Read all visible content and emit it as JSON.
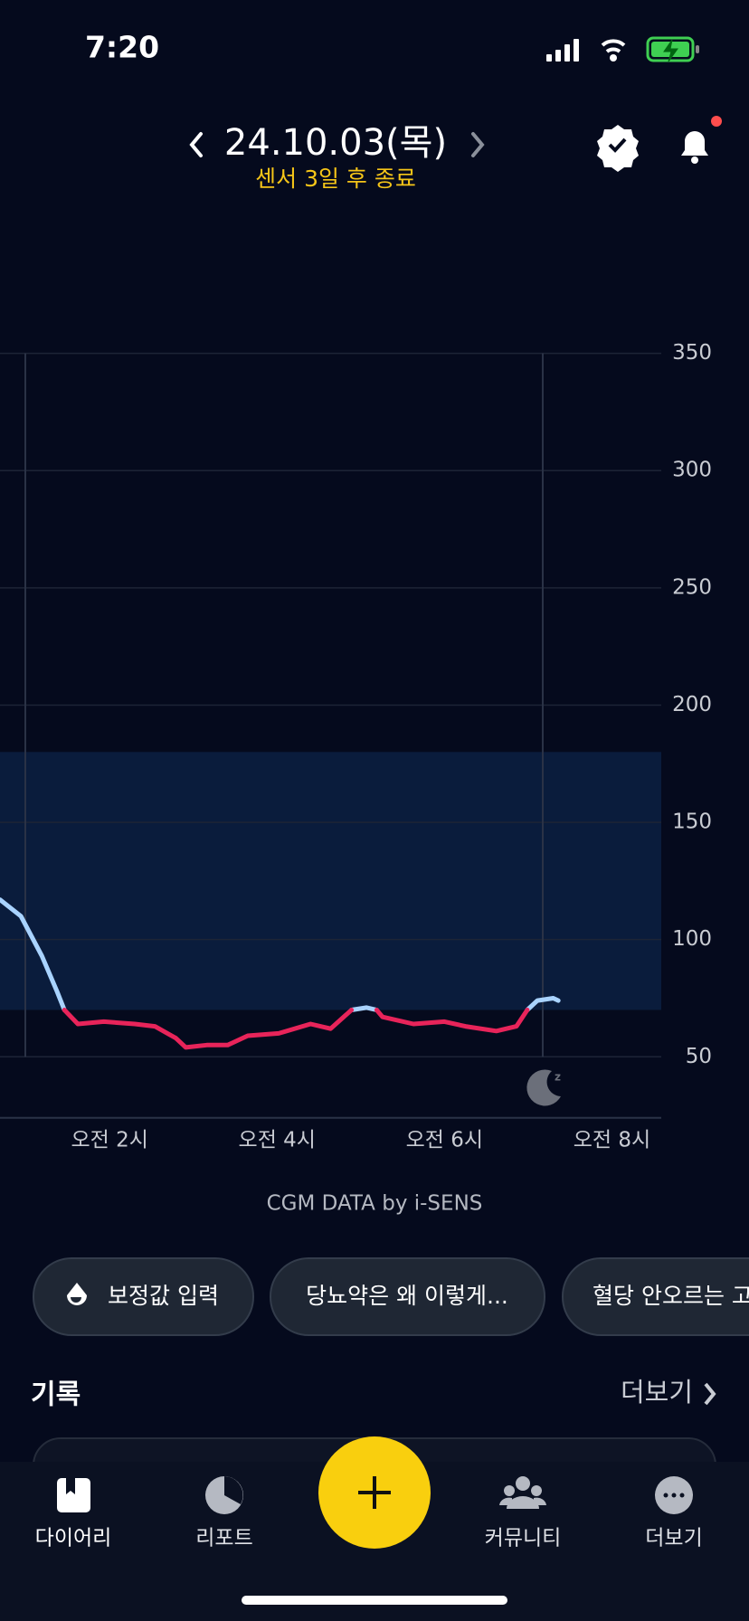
{
  "status_bar": {
    "time": "7:20"
  },
  "header": {
    "date": "24.10.03(목)",
    "subtitle": "센서 3일 후 종료"
  },
  "chart_data": {
    "type": "line",
    "x": [
      0.69,
      0.94,
      1.19,
      1.37,
      1.46,
      1.62,
      1.93,
      2.3,
      2.54,
      2.79,
      2.91,
      3.16,
      3.41,
      3.65,
      4.02,
      4.4,
      4.64,
      4.89,
      5.07,
      5.19,
      5.26,
      5.63,
      6.0,
      6.25,
      6.62,
      6.86,
      6.99,
      7.11,
      7.3,
      7.36
    ],
    "xlim": [
      0.69,
      8.59
    ],
    "xticks": [
      {
        "value": 2,
        "label": "오전 2시"
      },
      {
        "value": 4,
        "label": "오전 4시"
      },
      {
        "value": 6,
        "label": "오전 6시"
      },
      {
        "value": 8,
        "label": "오전 8시"
      }
    ],
    "ylim": [
      24,
      350
    ],
    "yticks": [
      50,
      100,
      150,
      200,
      250,
      300,
      350
    ],
    "grid": true,
    "target_range": [
      70,
      180
    ],
    "target_color": "#0a1c3c",
    "series": [
      {
        "color": "#a9d3ff",
        "values": [
          117,
          110,
          93,
          78,
          70,
          null,
          null,
          null,
          null,
          null,
          null,
          null,
          null,
          null,
          null,
          null,
          null,
          70,
          71,
          70,
          null,
          null,
          null,
          null,
          null,
          null,
          70,
          74,
          75,
          74
        ]
      },
      {
        "color": "#e8245a",
        "values": [
          null,
          null,
          null,
          null,
          70,
          64,
          65,
          64,
          63,
          58,
          54,
          55,
          55,
          59,
          60,
          64,
          62,
          70,
          null,
          70,
          67,
          64,
          65,
          63,
          61,
          63,
          70,
          null,
          null,
          null
        ]
      }
    ]
  },
  "credit": "CGM DATA by i-SENS",
  "chips": [
    "보정값 입력",
    "당뇨약은 왜 이렇게...",
    "혈당 안오르는 고"
  ],
  "records": {
    "title": "기록",
    "more": "더보기"
  },
  "tabs": [
    "다이어리",
    "리포트",
    "커뮤니티",
    "더보기"
  ]
}
